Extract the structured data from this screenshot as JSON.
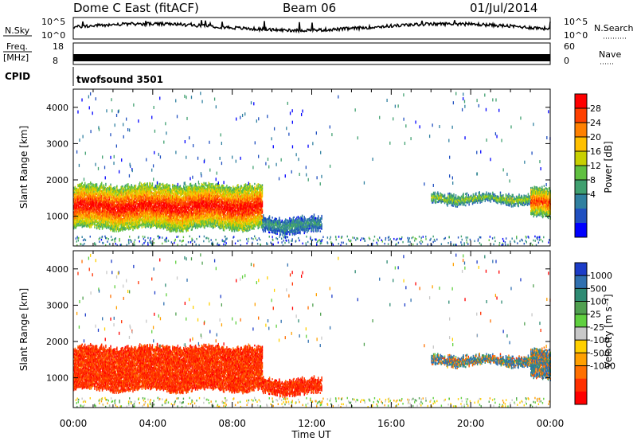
{
  "header": {
    "station": "Dome C East (fitACF)",
    "beam": "Beam 06",
    "date": "01/Jul/2014"
  },
  "top_panels": {
    "nsky_label": "N.Sky",
    "nsearch_label": "N.Search",
    "noise_ticks": [
      "10^5",
      "10^0"
    ],
    "freq_label": "Freq.",
    "freq_unit": "[MHz]",
    "freq_ticks": [
      "18",
      "8"
    ],
    "nave_label": "Nave",
    "nave_ticks": [
      "60",
      "0"
    ],
    "cpid_label": "CPID",
    "cpid_value": "twofsound 3501"
  },
  "colorbars": {
    "power": {
      "label": "Power [dB]",
      "ticks": [
        "28",
        "24",
        "20",
        "16",
        "12",
        "8",
        "4"
      ],
      "colors": [
        "#ff0000",
        "#ff4000",
        "#ff8000",
        "#ffc000",
        "#c8d000",
        "#60c040",
        "#40a070",
        "#3080a0",
        "#2050c0",
        "#0000ff"
      ]
    },
    "velocity": {
      "label": "Velocity [m s⁻¹]",
      "ticks": [
        "1000",
        "500",
        "100",
        "25",
        "-25",
        "-100",
        "-500",
        "-1000"
      ],
      "colors": [
        "#1c3cc8",
        "#3070b0",
        "#2e8b73",
        "#50a050",
        "#60d040",
        "#c8c8c8",
        "#ffd000",
        "#ffa000",
        "#ff7000",
        "#ff3000",
        "#ff0000"
      ]
    }
  },
  "axes": {
    "ylabel": "Slant Range [km]",
    "xlabel": "Time UT",
    "y_ticks": [
      "4000",
      "3000",
      "2000",
      "1000"
    ],
    "x_ticks": [
      "00:00",
      "04:00",
      "08:00",
      "12:00",
      "16:00",
      "20:00",
      "00:00"
    ]
  },
  "chart_data": {
    "type": "heatmap",
    "x_range": [
      "00:00",
      "24:00"
    ],
    "y_range_km": [
      180,
      4500
    ],
    "power_range_db": [
      0,
      30
    ],
    "velocity_range": [
      -1000,
      1000
    ],
    "regions": [
      {
        "t_start": 0.0,
        "t_end": 9.5,
        "r_min": 600,
        "r_max": 1900,
        "power_db": 28,
        "velocity": -180
      },
      {
        "t_start": 9.5,
        "t_end": 12.5,
        "r_min": 500,
        "r_max": 1000,
        "power_db": 10,
        "velocity": -200
      },
      {
        "t_start": 18.0,
        "t_end": 23.0,
        "r_min": 1300,
        "r_max": 1650,
        "power_db": 16,
        "velocity": 60
      },
      {
        "t_start": 23.0,
        "t_end": 24.0,
        "r_min": 900,
        "r_max": 1800,
        "power_db": 25,
        "velocity": 60
      }
    ]
  }
}
